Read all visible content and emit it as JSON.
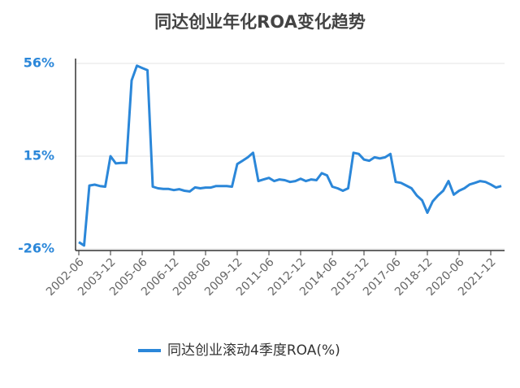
{
  "chart_data": {
    "type": "line",
    "title": "同达创业年化ROA变化趋势",
    "categories": [
      "2002-06",
      null,
      null,
      null,
      null,
      null,
      "2003-12",
      null,
      null,
      null,
      null,
      null,
      "2005-06",
      null,
      null,
      null,
      null,
      null,
      "2006-12",
      null,
      null,
      null,
      null,
      null,
      "2008-06",
      null,
      null,
      null,
      null,
      null,
      "2009-12",
      null,
      null,
      null,
      null,
      null,
      "2011-06",
      null,
      null,
      null,
      null,
      null,
      "2012-12",
      null,
      null,
      null,
      null,
      null,
      "2014-06",
      null,
      null,
      null,
      null,
      null,
      "2015-12",
      null,
      null,
      null,
      null,
      null,
      "2017-06",
      null,
      null,
      null,
      null,
      null,
      "2018-12",
      null,
      null,
      null,
      null,
      null,
      "2020-06",
      null,
      null,
      null,
      null,
      null,
      "2021-12",
      null,
      null
    ],
    "series": [
      {
        "name": "同达创业滚动4季度ROA(%)",
        "color": "#2b87d9",
        "values": [
          -23,
          -24.5,
          2,
          2.4,
          1.8,
          1.5,
          15,
          11.8,
          12,
          12,
          48.5,
          55,
          54,
          53,
          1.5,
          0.8,
          0.5,
          0.5,
          0,
          0.4,
          -0.3,
          -0.6,
          1.2,
          0.8,
          1.1,
          1.1,
          1.8,
          1.8,
          1.8,
          1.5,
          11.5,
          13,
          14.5,
          16.5,
          4,
          4.7,
          5.4,
          4,
          4.7,
          4.4,
          3.6,
          4,
          5,
          4,
          4.7,
          4.4,
          7.5,
          6.5,
          1.5,
          0.8,
          -0.3,
          0.8,
          16.5,
          16,
          13.5,
          13,
          14.5,
          14,
          14.5,
          16,
          3.6,
          3.2,
          2,
          0.8,
          -2.4,
          -4.5,
          -10,
          -5,
          -2.4,
          -0.3,
          4,
          -2,
          -0.3,
          0.8,
          2.5,
          3.2,
          4,
          3.6,
          2.5,
          1.1,
          1.8
        ]
      }
    ],
    "ylim": [
      -26,
      56
    ],
    "yticks": [
      {
        "value": -26,
        "label": "-26%"
      },
      {
        "value": 15,
        "label": "15%"
      },
      {
        "value": 56,
        "label": "56%"
      }
    ],
    "grid": true
  }
}
